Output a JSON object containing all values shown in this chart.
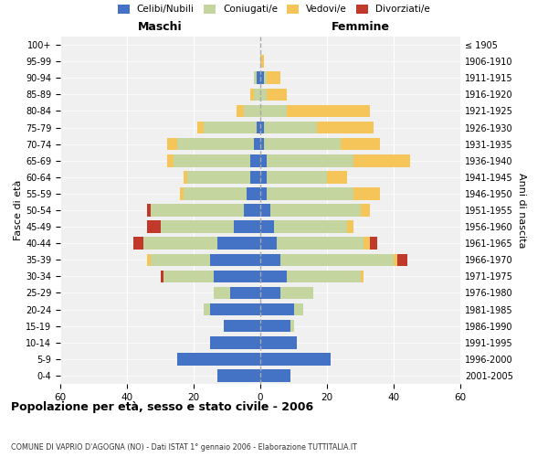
{
  "age_groups": [
    "0-4",
    "5-9",
    "10-14",
    "15-19",
    "20-24",
    "25-29",
    "30-34",
    "35-39",
    "40-44",
    "45-49",
    "50-54",
    "55-59",
    "60-64",
    "65-69",
    "70-74",
    "75-79",
    "80-84",
    "85-89",
    "90-94",
    "95-99",
    "100+"
  ],
  "birth_years": [
    "2001-2005",
    "1996-2000",
    "1991-1995",
    "1986-1990",
    "1981-1985",
    "1976-1980",
    "1971-1975",
    "1966-1970",
    "1961-1965",
    "1956-1960",
    "1951-1955",
    "1946-1950",
    "1941-1945",
    "1936-1940",
    "1931-1935",
    "1926-1930",
    "1921-1925",
    "1916-1920",
    "1911-1915",
    "1906-1910",
    "≤ 1905"
  ],
  "male": {
    "celibi": [
      13,
      25,
      15,
      11,
      15,
      9,
      14,
      15,
      13,
      8,
      5,
      4,
      3,
      3,
      2,
      1,
      0,
      0,
      1,
      0,
      0
    ],
    "coniugati": [
      0,
      0,
      0,
      0,
      2,
      5,
      15,
      18,
      22,
      22,
      28,
      19,
      19,
      23,
      23,
      16,
      5,
      2,
      1,
      0,
      0
    ],
    "vedovi": [
      0,
      0,
      0,
      0,
      0,
      0,
      0,
      1,
      0,
      0,
      0,
      1,
      1,
      2,
      3,
      2,
      2,
      1,
      0,
      0,
      0
    ],
    "divorziati": [
      0,
      0,
      0,
      0,
      0,
      0,
      1,
      0,
      3,
      4,
      1,
      0,
      0,
      0,
      0,
      0,
      0,
      0,
      0,
      0,
      0
    ]
  },
  "female": {
    "nubili": [
      9,
      21,
      11,
      9,
      10,
      6,
      8,
      6,
      5,
      4,
      3,
      2,
      2,
      2,
      1,
      1,
      0,
      0,
      1,
      0,
      0
    ],
    "coniugate": [
      0,
      0,
      0,
      1,
      3,
      10,
      22,
      34,
      26,
      22,
      27,
      26,
      18,
      26,
      23,
      16,
      8,
      2,
      1,
      0,
      0
    ],
    "vedove": [
      0,
      0,
      0,
      0,
      0,
      0,
      1,
      1,
      2,
      2,
      3,
      8,
      6,
      17,
      12,
      17,
      25,
      6,
      4,
      1,
      0
    ],
    "divorziate": [
      0,
      0,
      0,
      0,
      0,
      0,
      0,
      3,
      2,
      0,
      0,
      0,
      0,
      0,
      0,
      0,
      0,
      0,
      0,
      0,
      0
    ]
  },
  "color_celibi": "#4472C4",
  "color_coniugati": "#C5D5A0",
  "color_vedovi": "#F5C55A",
  "color_divorziati": "#C0392B",
  "title": "Popolazione per età, sesso e stato civile - 2006",
  "subtitle": "COMUNE DI VAPRIO D'AGOGNA (NO) - Dati ISTAT 1° gennaio 2006 - Elaborazione TUTTITALIA.IT",
  "xlabel_left": "Maschi",
  "xlabel_right": "Femmine",
  "ylabel_left": "Fasce di età",
  "ylabel_right": "Anni di nascita",
  "xlim": 60,
  "bg_color": "#ffffff",
  "plot_bg_color": "#f0f0f0",
  "grid_color": "#ffffff"
}
